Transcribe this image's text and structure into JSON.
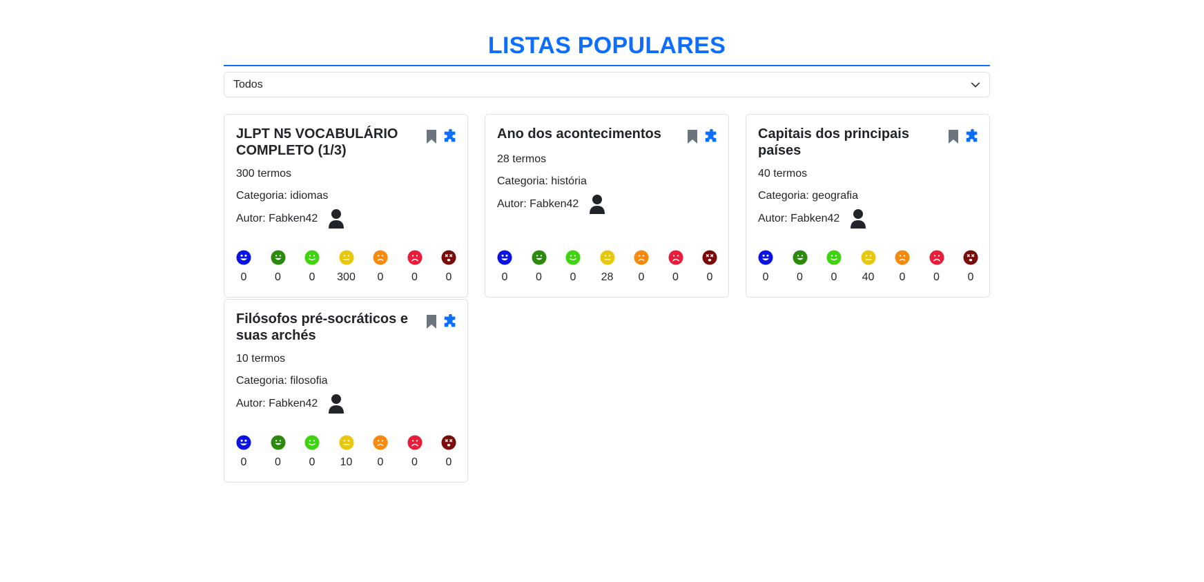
{
  "page": {
    "title": "LISTAS POPULARES"
  },
  "filter": {
    "selected": "Todos"
  },
  "colors": {
    "accent": "#0d6efd",
    "bookmark": "#6c757d",
    "levels": [
      "#0a12e6",
      "#2a8a0c",
      "#3fd40e",
      "#e8c80a",
      "#f78a0c",
      "#ea1c3a",
      "#7a0b0b"
    ]
  },
  "cards": [
    {
      "title": "JLPT N5 VOCABULÁRIO COMPLETO (1/3)",
      "terms": "300 termos",
      "category": "Categoria: idiomas",
      "author": "Autor: Fabken42",
      "scores": [
        "0",
        "0",
        "0",
        "300",
        "0",
        "0",
        "0"
      ]
    },
    {
      "title": "Ano dos acontecimentos",
      "terms": "28 termos",
      "category": "Categoria: história",
      "author": "Autor: Fabken42",
      "scores": [
        "0",
        "0",
        "0",
        "28",
        "0",
        "0",
        "0"
      ]
    },
    {
      "title": "Capitais dos principais países",
      "terms": "40 termos",
      "category": "Categoria: geografia",
      "author": "Autor: Fabken42",
      "scores": [
        "0",
        "0",
        "0",
        "40",
        "0",
        "0",
        "0"
      ]
    },
    {
      "title": "Filósofos pré-socráticos e suas archés",
      "terms": "10 termos",
      "category": "Categoria: filosofia",
      "author": "Autor: Fabken42",
      "scores": [
        "0",
        "0",
        "0",
        "10",
        "0",
        "0",
        "0"
      ]
    }
  ]
}
